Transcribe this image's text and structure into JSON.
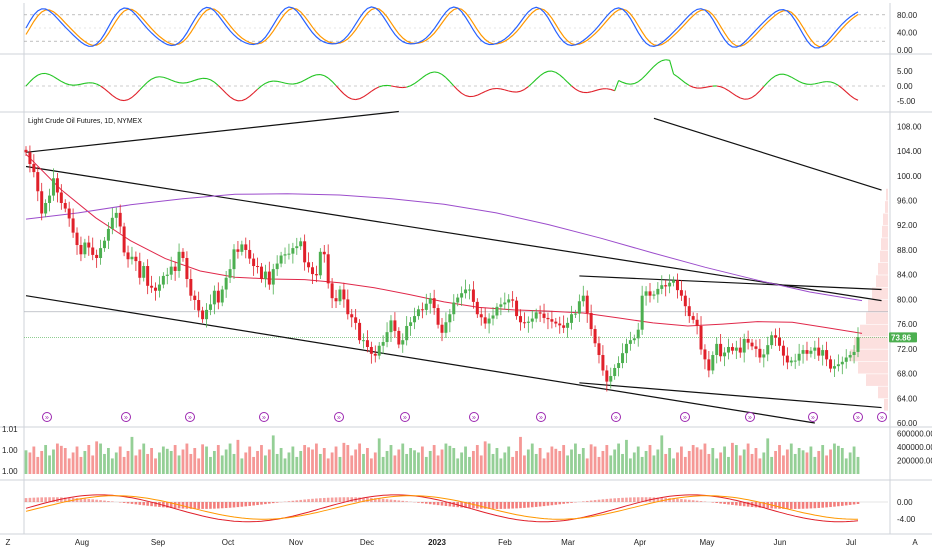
{
  "chart_data": {
    "type": "candlestick",
    "title": "Light Crude Oil Futures, 1D, NYMEX",
    "x_ticks": [
      "Aug",
      "Sep",
      "Oct",
      "Nov",
      "Dec",
      "2023",
      "Feb",
      "Mar",
      "Apr",
      "May",
      "Jun",
      "Jul"
    ],
    "price_ticks": [
      "108.00",
      "104.00",
      "100.00",
      "96.00",
      "92.00",
      "88.00",
      "84.00",
      "80.00",
      "76.00",
      "72.00",
      "68.00",
      "64.00",
      "60.00"
    ],
    "ylim": [
      60,
      110
    ],
    "last_price": "73.86",
    "closes": [
      103.8,
      101.9,
      100.6,
      97.5,
      93.9,
      95.6,
      96.8,
      99.6,
      97.3,
      95.6,
      94.7,
      93.1,
      90.8,
      88.8,
      87.3,
      89.2,
      88.4,
      87.2,
      86.7,
      88.3,
      89.5,
      91.4,
      93.2,
      94.0,
      91.8,
      87.6,
      86.5,
      86.9,
      86.2,
      83.5,
      85.4,
      82.2,
      81.9,
      81.4,
      82.4,
      83.8,
      84.0,
      85.3,
      84.6,
      87.7,
      86.7,
      83.3,
      80.6,
      79.9,
      78.2,
      76.8,
      78.3,
      79.2,
      81.4,
      79.5,
      81.6,
      83.5,
      84.9,
      88.1,
      87.7,
      88.9,
      88.0,
      86.6,
      85.4,
      85.3,
      83.3,
      84.5,
      82.4,
      84.9,
      85.8,
      87.1,
      87.3,
      87.4,
      88.3,
      88.6,
      89.4,
      86.0,
      85.2,
      84.1,
      83.9,
      87.7,
      87.3,
      82.6,
      80.2,
      79.7,
      81.6,
      80.0,
      77.6,
      77.1,
      76.2,
      73.4,
      73.4,
      72.3,
      71.2,
      70.9,
      72.5,
      73.1,
      74.7,
      76.6,
      74.9,
      72.7,
      73.4,
      75.7,
      76.3,
      77.3,
      78.4,
      78.3,
      79.3,
      80.2,
      78.6,
      75.9,
      74.6,
      76.3,
      77.6,
      79.5,
      80.3,
      81.0,
      81.6,
      81.6,
      79.6,
      77.6,
      77.1,
      76.1,
      76.9,
      77.4,
      78.8,
      79.2,
      79.5,
      80.0,
      79.8,
      77.3,
      76.3,
      76.2,
      76.4,
      76.9,
      77.9,
      77.7,
      77.0,
      76.8,
      76.4,
      76.1,
      75.8,
      75.4,
      76.2,
      77.6,
      77.7,
      79.7,
      80.6,
      77.8,
      75.2,
      72.9,
      71.0,
      68.5,
      66.7,
      67.6,
      68.9,
      69.7,
      71.3,
      72.8,
      73.4,
      73.7,
      75.1,
      80.6,
      81.3,
      80.6,
      80.8,
      81.7,
      82.3,
      82.1,
      82.7,
      83.1,
      81.5,
      80.6,
      78.9,
      77.3,
      76.7,
      75.7,
      71.9,
      70.3,
      68.5,
      71.0,
      72.8,
      70.8,
      71.4,
      72.3,
      71.7,
      72.2,
      71.4,
      73.6,
      73.0,
      72.4,
      72.0,
      70.6,
      71.1,
      72.6,
      74.2,
      73.8,
      72.5,
      70.9,
      69.8,
      70.1,
      70.1,
      71.2,
      71.8,
      71.2,
      71.7,
      72.2,
      70.9,
      71.8,
      70.3,
      68.8,
      69.2,
      69.5,
      69.9,
      70.6,
      71.0,
      71.5,
      73.9
    ],
    "moving_averages": [
      {
        "name": "MA50",
        "color": "#e0284a",
        "values": [
          103.5,
          97.8,
          93.2,
          89.5,
          86.6,
          84.6,
          83.6,
          83.3,
          83.2,
          82.7,
          81.9,
          80.8,
          79.6,
          78.7,
          78.3,
          78.1,
          77.8,
          77.0,
          76.2,
          75.7,
          76.0,
          76.4,
          76.3,
          75.4,
          74.5
        ]
      },
      {
        "name": "MA200",
        "color": "#9c4dcc",
        "values": [
          93.0,
          94.0,
          95.3,
          96.3,
          97.0,
          97.1,
          96.9,
          96.3,
          95.4,
          94.0,
          92.1,
          89.9,
          87.5,
          85.2,
          83.1,
          81.2,
          79.8
        ]
      }
    ],
    "stochastic": {
      "ticks": [
        "80.00",
        "40.00",
        "0.00"
      ],
      "levels": [
        80,
        20
      ]
    },
    "momentum": {
      "ticks": [
        "5.00",
        "0.00",
        "-5.00"
      ]
    },
    "volume": {
      "ticks": [
        "600000.00",
        "400000.00",
        "200000.00"
      ],
      "left_ticks": [
        "1.01",
        "1.00",
        "1.00"
      ]
    },
    "macd": {
      "ticks": [
        "0.00",
        "-4.00"
      ]
    },
    "annotations": {
      "price_line_labels": [
        "78.00",
        "73.86"
      ]
    },
    "colors": {
      "up": "#26a69a",
      "down": "#ef5350",
      "green": "#4caf50",
      "signal": "#ff9800",
      "stoch_k": "#2962ff"
    }
  }
}
